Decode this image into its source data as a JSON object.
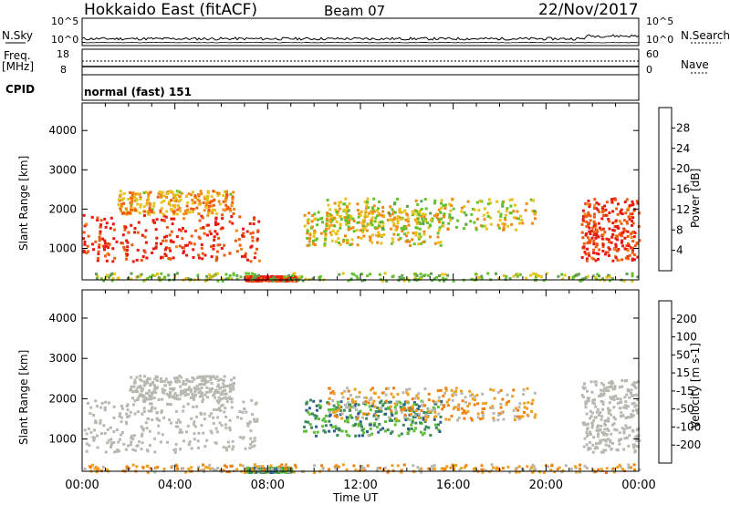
{
  "header": {
    "radar": "Hokkaido East (fitACF)",
    "beam": "Beam 07",
    "date": "22/Nov/2017"
  },
  "panels": {
    "nsky_label": "N.Sky",
    "nsearch_label": "N.Search",
    "freq_label_1": "Freq.",
    "freq_label_2": "[MHz]",
    "nave_label": "Nave",
    "cpid_label": "CPID",
    "cpid_text": "normal (fast) 151",
    "noise_ticks_left": [
      "10^5",
      "10^0"
    ],
    "noise_ticks_right": [
      "10^5",
      "10^0"
    ],
    "freq_ticks": [
      "18",
      "8"
    ],
    "nave_ticks": [
      "60",
      "0"
    ]
  },
  "colors": {
    "power_scale": [
      "#1d2cf0",
      "#2d4f9d",
      "#3f7f6a",
      "#5f9f55",
      "#63c12a",
      "#e8c21c",
      "#f08a16",
      "#f05a10",
      "#e81810"
    ],
    "velocity_scale": [
      "#2030e0",
      "#2f5e8e",
      "#3c8a5e",
      "#5fbf38",
      "#b8b8b0",
      "#f0a020",
      "#f08010",
      "#f04010",
      "#e81010"
    ],
    "ground_scatter": "#b8b8b0"
  },
  "chart_data": [
    {
      "type": "heatmap",
      "name": "power-panel",
      "x_label": "Time UT",
      "y_label": "Slant Range [km]",
      "x_range_hours": [
        0,
        24
      ],
      "y_range_km": [
        200,
        4700
      ],
      "y_ticks": [
        "1000",
        "2000",
        "3000",
        "4000"
      ],
      "colorbar_label": "Power [dB]",
      "colorbar_ticks": [
        "4",
        "8",
        "12",
        "16",
        "20",
        "24",
        "28"
      ],
      "regions": [
        {
          "t0": 0.0,
          "t1": 7.6,
          "r0": 700,
          "r1": 1900,
          "level": 0.92
        },
        {
          "t0": 1.5,
          "t1": 6.5,
          "r0": 1900,
          "r1": 2500,
          "level": 0.7
        },
        {
          "t0": 7.0,
          "t1": 9.2,
          "r0": 200,
          "r1": 320,
          "level": 0.95
        },
        {
          "t0": 9.5,
          "t1": 15.5,
          "r0": 1100,
          "r1": 2000,
          "level": 0.62
        },
        {
          "t0": 10.5,
          "t1": 19.5,
          "r0": 1500,
          "r1": 2300,
          "level": 0.58
        },
        {
          "t0": 21.5,
          "t1": 24.0,
          "r0": 700,
          "r1": 2300,
          "level": 0.9
        },
        {
          "t0": 0.0,
          "t1": 24.0,
          "r0": 200,
          "r1": 400,
          "level": 0.5
        }
      ]
    },
    {
      "type": "heatmap",
      "name": "velocity-panel",
      "x_label": "Time UT",
      "y_label": "Slant Range [km]",
      "x_range_hours": [
        0,
        24
      ],
      "y_range_km": [
        200,
        4700
      ],
      "y_ticks": [
        "1000",
        "2000",
        "3000",
        "4000"
      ],
      "colorbar_label": "Velocity [m s-1]",
      "colorbar_ticks": [
        "200",
        "100",
        "50",
        "15",
        "-15",
        "-50",
        "-100",
        "-200"
      ],
      "regions": [
        {
          "t0": 0.0,
          "t1": 7.5,
          "r0": 700,
          "r1": 2000,
          "level": 0.45
        },
        {
          "t0": 2.0,
          "t1": 6.5,
          "r0": 2000,
          "r1": 2600,
          "level": 0.45
        },
        {
          "t0": 7.0,
          "t1": 9.0,
          "r0": 200,
          "r1": 320,
          "level": 0.3
        },
        {
          "t0": 9.5,
          "t1": 15.5,
          "r0": 1100,
          "r1": 2000,
          "level": 0.3
        },
        {
          "t0": 10.5,
          "t1": 19.5,
          "r0": 1500,
          "r1": 2300,
          "level": 0.6
        },
        {
          "t0": 21.5,
          "t1": 24.0,
          "r0": 700,
          "r1": 2500,
          "level": 0.45
        },
        {
          "t0": 0.0,
          "t1": 24.0,
          "r0": 200,
          "r1": 400,
          "level": 0.6
        }
      ]
    }
  ],
  "x_ticks": [
    "00:00",
    "04:00",
    "08:00",
    "12:00",
    "16:00",
    "20:00",
    "00:00"
  ]
}
